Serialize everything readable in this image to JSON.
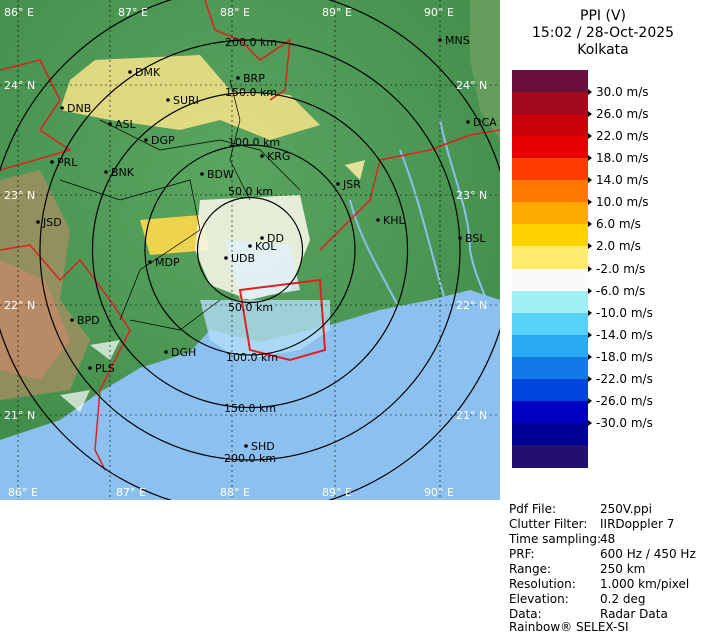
{
  "product": {
    "type": "PPI (V)",
    "datetime": "15:02 / 28-Oct-2025",
    "station": "Kolkata"
  },
  "grid": {
    "lon_labels": [
      "86° E",
      "87° E",
      "88° E",
      "89° E",
      "90° E"
    ],
    "lat_labels": [
      "24° N",
      "23° N",
      "22° N",
      "21° N"
    ]
  },
  "range_rings": [
    "50.0 km",
    "100.0 km",
    "150.0 km",
    "200.0 km"
  ],
  "places": [
    {
      "code": "MNS"
    },
    {
      "code": "DMK"
    },
    {
      "code": "BRP"
    },
    {
      "code": "DNB"
    },
    {
      "code": "SURI"
    },
    {
      "code": "ASL"
    },
    {
      "code": "DGP"
    },
    {
      "code": "DCA"
    },
    {
      "code": "KRG"
    },
    {
      "code": "PRL"
    },
    {
      "code": "BNK"
    },
    {
      "code": "BDW"
    },
    {
      "code": "JSR"
    },
    {
      "code": "KHL"
    },
    {
      "code": "JSD"
    },
    {
      "code": "DD"
    },
    {
      "code": "BSL"
    },
    {
      "code": "KOL"
    },
    {
      "code": "MDP"
    },
    {
      "code": "UDB"
    },
    {
      "code": "BPD"
    },
    {
      "code": "DGH"
    },
    {
      "code": "PLS"
    },
    {
      "code": "SHD"
    }
  ],
  "legend": {
    "unit": "m/s",
    "colors": [
      "#6b0f3e",
      "#a30a1e",
      "#c8000a",
      "#e60000",
      "#ff3c00",
      "#ff7800",
      "#ffaa00",
      "#ffd200",
      "#ffeb6e",
      "#fafafa",
      "#9ff0f5",
      "#55d2f5",
      "#28aaf0",
      "#1478e6",
      "#0046dc",
      "#0000c3",
      "#000096",
      "#230f6e"
    ],
    "ticks": [
      "30.0 m/s",
      "26.0 m/s",
      "22.0 m/s",
      "18.0 m/s",
      "14.0 m/s",
      "10.0 m/s",
      "6.0 m/s",
      "2.0 m/s",
      "-2.0 m/s",
      "-6.0 m/s",
      "-10.0 m/s",
      "-14.0 m/s",
      "-18.0 m/s",
      "-22.0 m/s",
      "-26.0 m/s",
      "-30.0 m/s"
    ]
  },
  "info": [
    {
      "label": "Pdf File:",
      "value": "250V.ppi"
    },
    {
      "label": "Clutter Filter:",
      "value": "IIRDoppler 7"
    },
    {
      "label": "Time sampling:",
      "value": "48"
    },
    {
      "label": "PRF:",
      "value": "600 Hz / 450 Hz"
    },
    {
      "label": "Range:",
      "value": "250 km"
    },
    {
      "label": "Resolution:",
      "value": "1.000 km/pixel"
    },
    {
      "label": "Elevation:",
      "value": "0.2 deg"
    },
    {
      "label": "Data:",
      "value": "Radar Data"
    }
  ],
  "vendor": "Rainbow® SELEX-SI",
  "colors": {
    "land_green": "#4f9a55",
    "sea_blue": "#8cc0ee",
    "ring": "#000000",
    "border_red": "#e02020"
  }
}
